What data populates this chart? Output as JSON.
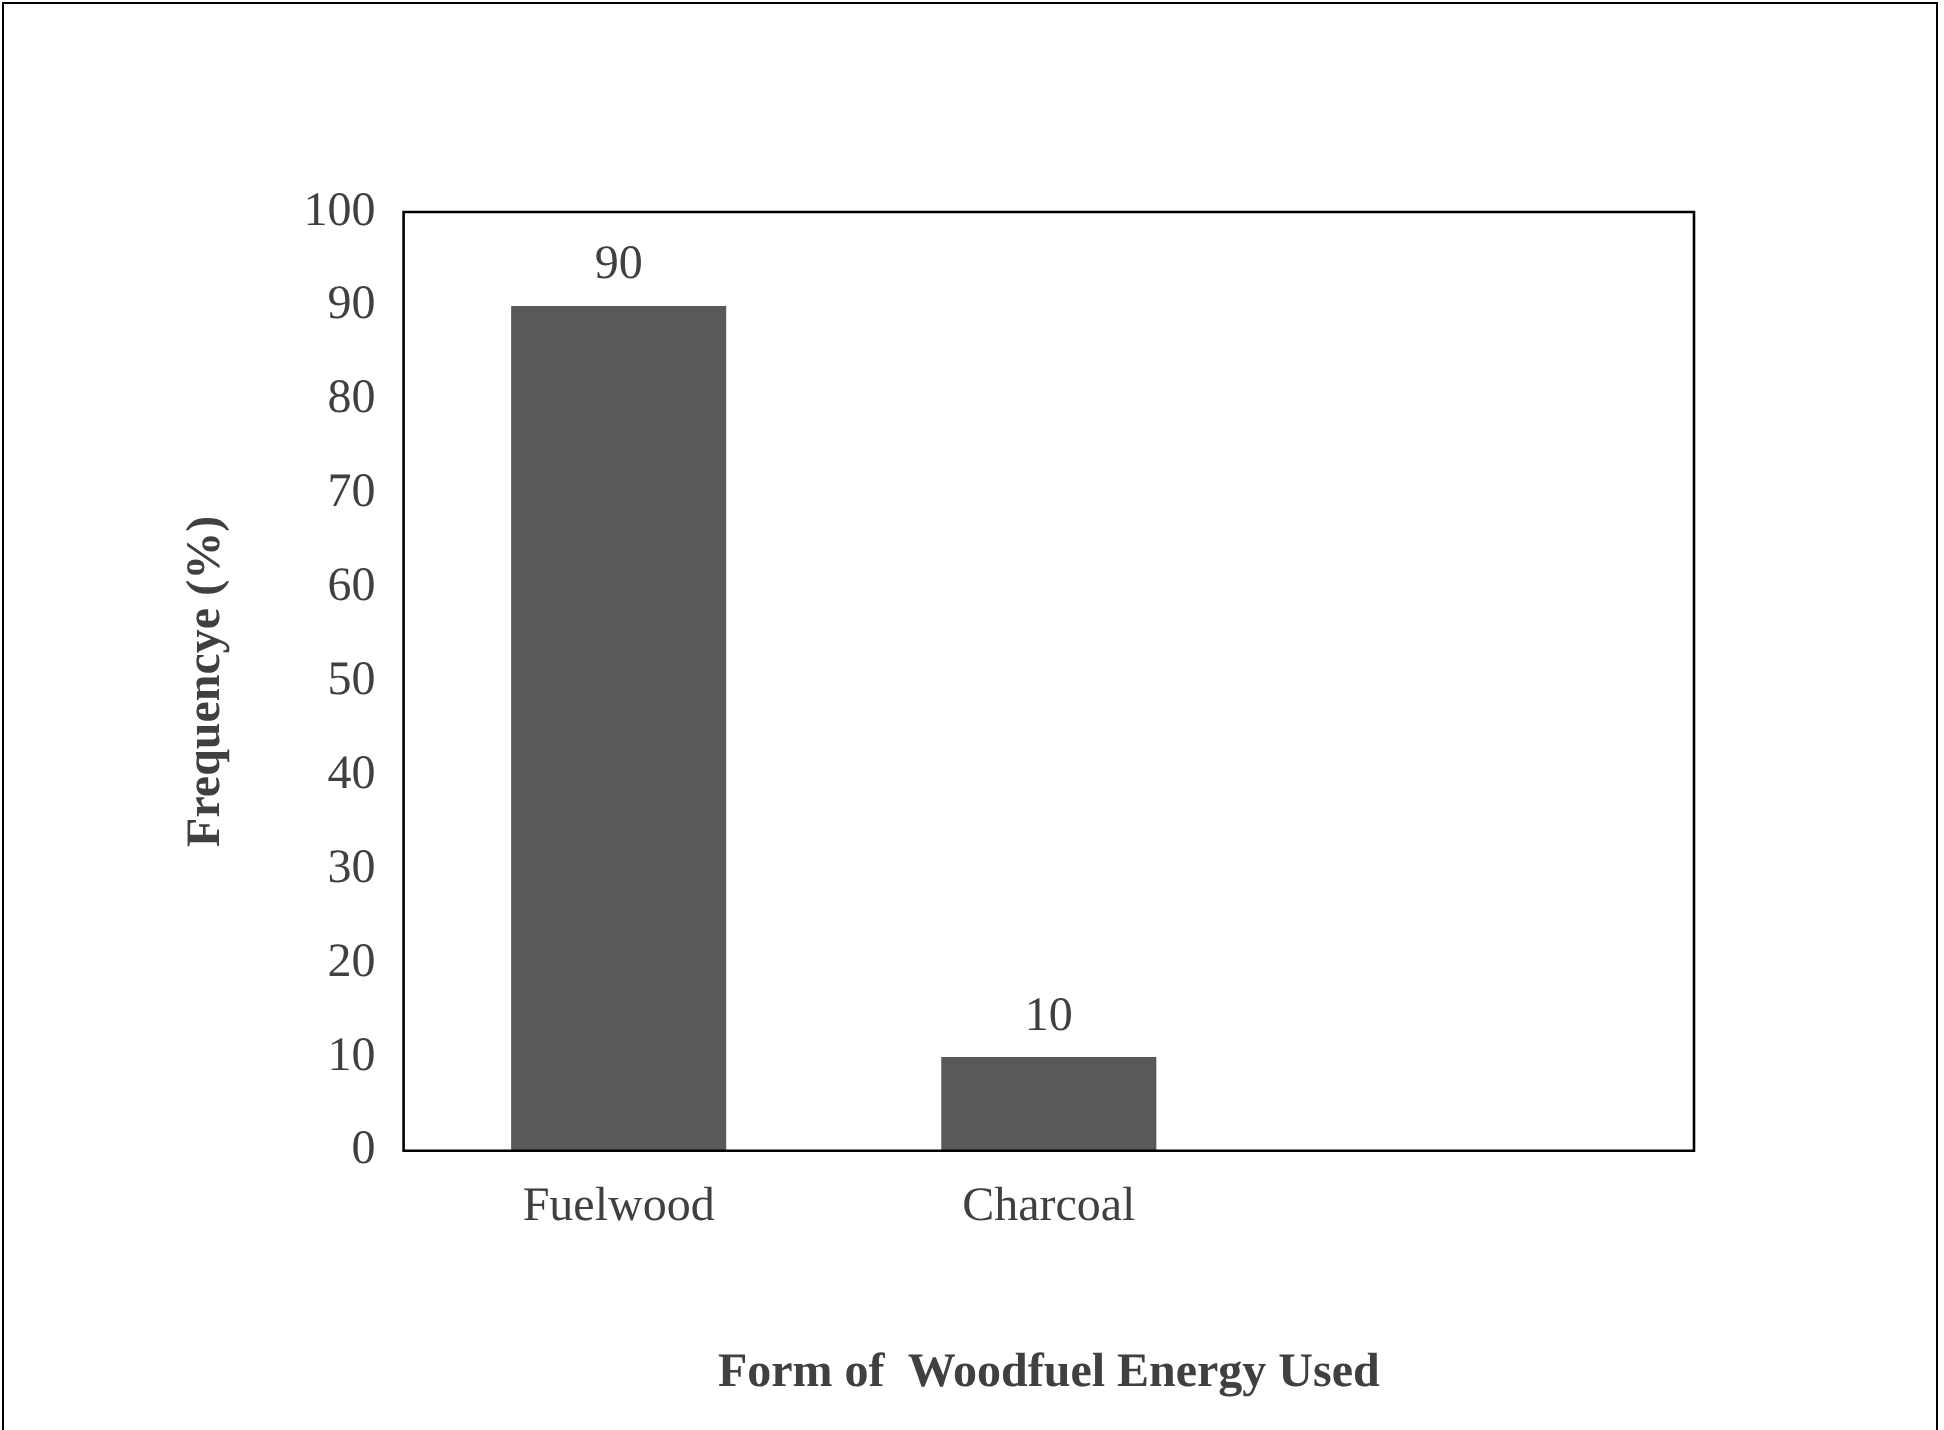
{
  "chart_data": {
    "type": "bar",
    "xlabel": "Form of  Woodfuel Energy Used",
    "ylabel": "Frequencye (%)",
    "categories": [
      "Fuelwood",
      "Charcoal",
      null
    ],
    "values": [
      90,
      10,
      null
    ],
    "color": "#595959",
    "ylim": [
      0,
      100
    ],
    "yticks": [
      0,
      10,
      20,
      30,
      40,
      50,
      60,
      70,
      80,
      90,
      100
    ],
    "grid": false,
    "legend": false,
    "data_labels": true
  }
}
